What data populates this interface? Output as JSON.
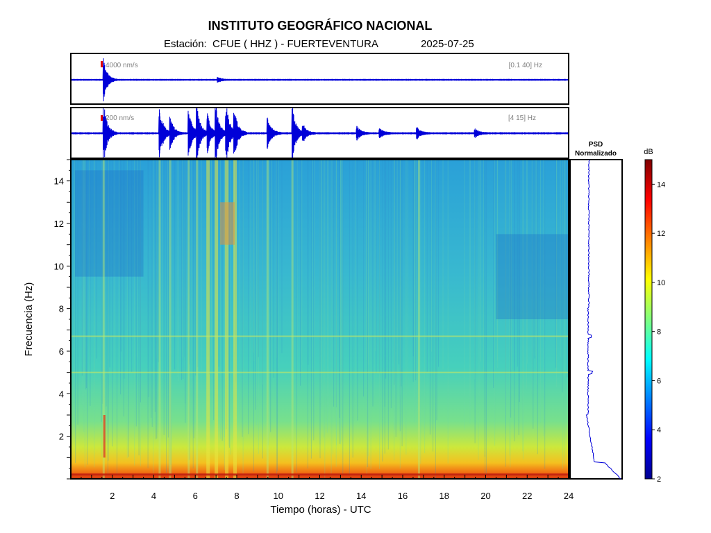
{
  "header": {
    "title": "INSTITUTO GEOGRÁFICO NACIONAL",
    "subtitle": "Estación:  CFUE ( HHZ ) - FUERTEVENTURA",
    "date": "2025-07-25"
  },
  "colors": {
    "trace": "#0000d8",
    "marker": "#e00000",
    "axis": "#000000"
  },
  "chart_data": [
    {
      "type": "line",
      "panel": "seismogram-broadband",
      "amplitude_label": "4000 nm/s",
      "filter_label": "[0.1 40] Hz",
      "xlim": [
        0,
        24
      ],
      "events": [
        {
          "t": 1.6,
          "amp": 1.0
        },
        {
          "t": 7.1,
          "amp": 0.12
        }
      ]
    },
    {
      "type": "line",
      "panel": "seismogram-filtered",
      "amplitude_label": "200 nm/s",
      "filter_label": "[4 15] Hz",
      "xlim": [
        0,
        24
      ],
      "events": [
        {
          "t": 1.6,
          "amp": 1.0
        },
        {
          "t": 4.3,
          "amp": 0.9
        },
        {
          "t": 4.8,
          "amp": 0.6
        },
        {
          "t": 5.7,
          "amp": 0.8
        },
        {
          "t": 6.1,
          "amp": 0.9
        },
        {
          "t": 6.6,
          "amp": 0.7
        },
        {
          "t": 7.0,
          "amp": 1.0
        },
        {
          "t": 7.5,
          "amp": 1.0
        },
        {
          "t": 7.9,
          "amp": 0.8
        },
        {
          "t": 9.5,
          "amp": 0.6
        },
        {
          "t": 10.7,
          "amp": 0.9
        },
        {
          "t": 11.2,
          "amp": 0.3
        },
        {
          "t": 13.8,
          "amp": 0.25
        },
        {
          "t": 14.9,
          "amp": 0.2
        },
        {
          "t": 16.7,
          "amp": 0.2
        },
        {
          "t": 19.5,
          "amp": 0.15
        }
      ]
    },
    {
      "type": "heatmap",
      "panel": "spectrogram",
      "xlabel": "Tiempo (horas) - UTC",
      "ylabel": "Frecuencia  (Hz)",
      "xlim": [
        0,
        24
      ],
      "ylim": [
        0,
        15
      ],
      "xticks": [
        2,
        4,
        6,
        8,
        10,
        12,
        14,
        16,
        18,
        20,
        22,
        24
      ],
      "yticks": [
        2,
        4,
        6,
        8,
        10,
        12,
        14
      ],
      "horizontal_lines_hz": [
        5.0,
        6.7
      ],
      "vertical_features_h": [
        1.6,
        4.3,
        4.8,
        5.7,
        6.1,
        6.6,
        7.0,
        7.5,
        7.9,
        9.5,
        10.7,
        16.8
      ]
    },
    {
      "type": "line",
      "panel": "psd",
      "title_line1": "PSD",
      "title_line2": "Normalizado",
      "ylim": [
        0,
        15
      ]
    },
    {
      "type": "heatmap",
      "panel": "colorbar",
      "unit": "dB",
      "range": [
        2,
        15
      ],
      "ticks": [
        2,
        4,
        6,
        8,
        10,
        12,
        14
      ]
    }
  ]
}
